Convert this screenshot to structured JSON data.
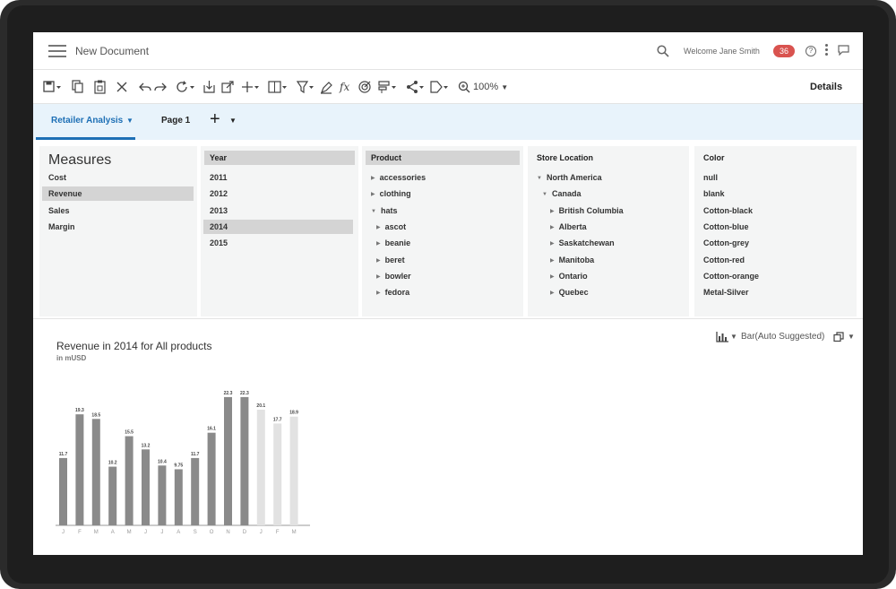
{
  "header": {
    "title": "New Document",
    "welcome": "Welcome Jane Smith",
    "notification_count": "36",
    "help_glyph": "?"
  },
  "toolbar": {
    "zoom": "100%",
    "details_label": "Details",
    "icons": [
      "save-icon",
      "copy-icon",
      "paste-icon",
      "close-icon",
      "undo-icon",
      "redo-icon",
      "refresh-icon",
      "import-icon",
      "export-icon",
      "add-icon",
      "column-icon",
      "filter-icon",
      "highlight-icon",
      "formula-icon",
      "target-icon",
      "sort-icon",
      "share-icon",
      "tag-icon",
      "zoom-icon"
    ]
  },
  "tabs": {
    "active": "Retailer Analysis",
    "page": "Page 1",
    "add_glyph": "+"
  },
  "panels": {
    "measures": {
      "title": "Measures",
      "items": [
        "Cost",
        "Revenue",
        "Sales",
        "Margin"
      ],
      "selected": "Revenue"
    },
    "year": {
      "title": "Year",
      "items": [
        "2011",
        "2012",
        "2013",
        "2014",
        "2015"
      ],
      "selected": "2014"
    },
    "product": {
      "title": "Product",
      "items": [
        {
          "label": "accessories",
          "glyph": "▶"
        },
        {
          "label": "clothing",
          "glyph": "▶"
        },
        {
          "label": "hats",
          "glyph": "▼"
        },
        {
          "label": "ascot",
          "glyph": "▶"
        },
        {
          "label": "beanie",
          "glyph": "▶"
        },
        {
          "label": "beret",
          "glyph": "▶"
        },
        {
          "label": "bowler",
          "glyph": "▶"
        },
        {
          "label": "fedora",
          "glyph": "▶"
        }
      ]
    },
    "store": {
      "title": "Store Location",
      "items": [
        {
          "label": "North America",
          "glyph": "▼"
        },
        {
          "label": "Canada",
          "glyph": "▼"
        },
        {
          "label": "British Columbia",
          "glyph": "▶"
        },
        {
          "label": "Alberta",
          "glyph": "▶"
        },
        {
          "label": "Saskatchewan",
          "glyph": "▶"
        },
        {
          "label": "Manitoba",
          "glyph": "▶"
        },
        {
          "label": "Ontario",
          "glyph": "▶"
        },
        {
          "label": "Quebec",
          "glyph": "▶"
        }
      ]
    },
    "color": {
      "title": "Color",
      "items": [
        "null",
        "blank",
        "Cotton-black",
        "Cotton-blue",
        "Cotton-grey",
        "Cotton-red",
        "Cotton-orange",
        "Metal-Silver"
      ]
    }
  },
  "chart": {
    "title": "Revenue in 2014 for All products",
    "subtitle": "in mUSD",
    "type_label": "Bar(Auto Suggested)"
  },
  "chart_data": {
    "type": "bar",
    "categories": [
      "J",
      "F",
      "M",
      "A",
      "M",
      "J",
      "J",
      "A",
      "S",
      "O",
      "N",
      "D",
      "J",
      "F",
      "M"
    ],
    "values": [
      11.7,
      19.3,
      18.5,
      10.2,
      15.5,
      13.2,
      10.4,
      9.75,
      11.7,
      16.1,
      22.3,
      22.3,
      20.1,
      17.7,
      18.9
    ],
    "value_labels": [
      "11.7",
      "19.3",
      "18.5",
      "10.2",
      "15.5",
      "13.2",
      "10.4",
      "9.75",
      "11.7",
      "16.1",
      "22.3",
      "22.3",
      "20.1",
      "17.7",
      "18.9"
    ],
    "forecast_from_index": 12,
    "colors": {
      "actual": "#8a8a8a",
      "forecast": "#e2e2e2"
    },
    "ylim": [
      0,
      24
    ]
  }
}
